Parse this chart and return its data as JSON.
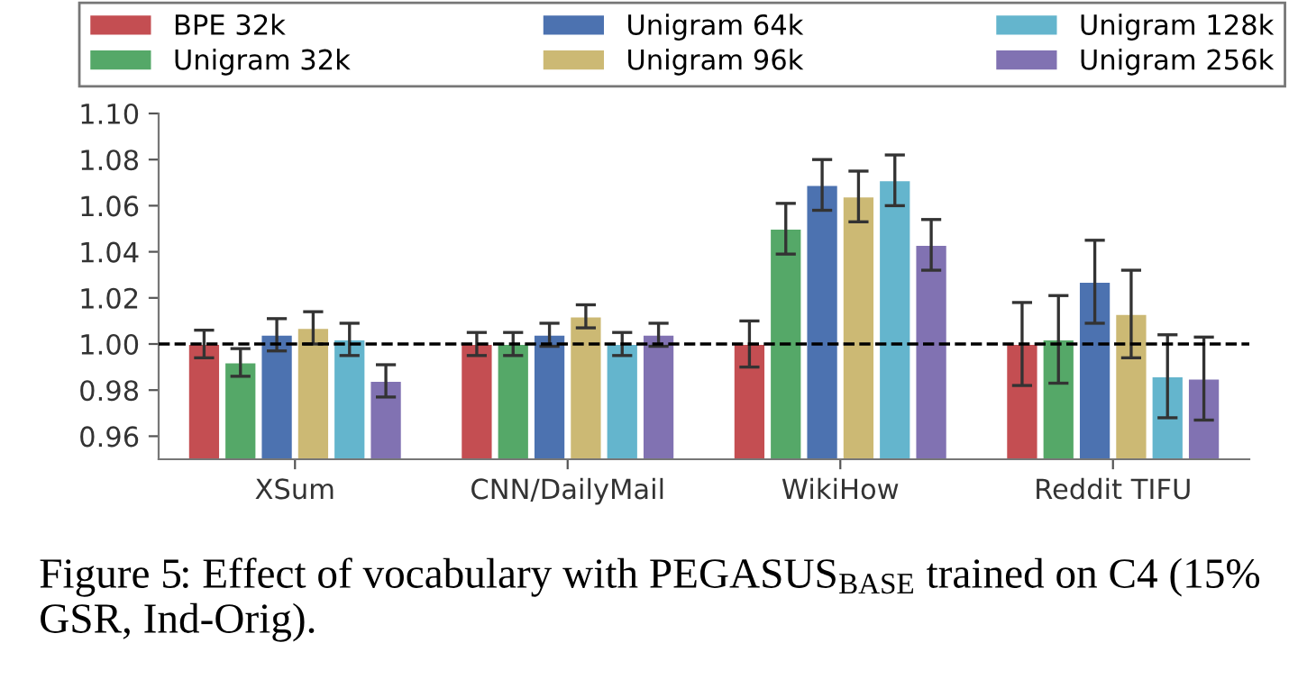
{
  "chart_data": {
    "type": "bar",
    "categories": [
      "XSum",
      "CNN/DailyMail",
      "WikiHow",
      "Reddit TIFU"
    ],
    "series": [
      {
        "name": "BPE 32k",
        "color": "#c44e52",
        "values": [
          1.0,
          1.0,
          1.0,
          1.0
        ],
        "errors": [
          0.006,
          0.005,
          0.01,
          0.018
        ]
      },
      {
        "name": "Unigram 32k",
        "color": "#55a868",
        "values": [
          0.992,
          1.0,
          1.05,
          1.002
        ],
        "errors": [
          0.006,
          0.005,
          0.011,
          0.019
        ]
      },
      {
        "name": "Unigram 64k",
        "color": "#4c72b0",
        "values": [
          1.004,
          1.004,
          1.069,
          1.027
        ],
        "errors": [
          0.007,
          0.005,
          0.011,
          0.018
        ]
      },
      {
        "name": "Unigram 96k",
        "color": "#ccb974",
        "values": [
          1.007,
          1.012,
          1.064,
          1.013
        ],
        "errors": [
          0.007,
          0.005,
          0.011,
          0.019
        ]
      },
      {
        "name": "Unigram 128k",
        "color": "#64b5cd",
        "values": [
          1.002,
          1.0,
          1.071,
          0.986
        ],
        "errors": [
          0.007,
          0.005,
          0.011,
          0.018
        ]
      },
      {
        "name": "Unigram 256k",
        "color": "#8172b2",
        "values": [
          0.984,
          1.004,
          1.043,
          0.985
        ],
        "errors": [
          0.007,
          0.005,
          0.011,
          0.018
        ]
      }
    ],
    "ylim": [
      0.95,
      1.1
    ],
    "yticks": [
      {
        "value": 0.96,
        "label": "0.96"
      },
      {
        "value": 0.98,
        "label": "0.98"
      },
      {
        "value": 1.0,
        "label": "1.00"
      },
      {
        "value": 1.02,
        "label": "1.02"
      },
      {
        "value": 1.04,
        "label": "1.04"
      },
      {
        "value": 1.06,
        "label": "1.06"
      },
      {
        "value": 1.08,
        "label": "1.08"
      },
      {
        "value": 1.1,
        "label": "1.10"
      }
    ],
    "ref_lines": [
      {
        "axis": "y",
        "value": 1.0,
        "color": "#000000",
        "line_style": "dashed"
      }
    ],
    "grid": false,
    "legend": "top",
    "annotations": [
      "Figure 5: Effect of vocabulary with PEGASUS$_{BASE}$ trained on C4 (15% GSR, Ind-Orig)."
    ]
  }
}
